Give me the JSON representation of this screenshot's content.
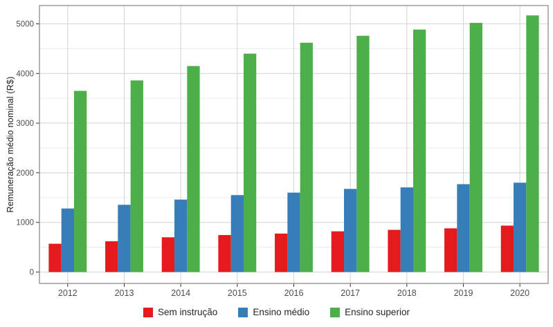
{
  "chart_data": {
    "type": "bar",
    "title": "",
    "xlabel": "",
    "ylabel": "Remuneração médio nominal (R$)",
    "categories": [
      "2012",
      "2013",
      "2014",
      "2015",
      "2016",
      "2017",
      "2018",
      "2019",
      "2020"
    ],
    "series": [
      {
        "name": "Sem instrução",
        "color": "#e41a1c",
        "values": [
          570,
          620,
          700,
          745,
          775,
          820,
          850,
          880,
          935
        ]
      },
      {
        "name": "Ensino médio",
        "color": "#377eb8",
        "values": [
          1280,
          1355,
          1460,
          1550,
          1600,
          1675,
          1705,
          1770,
          1800
        ]
      },
      {
        "name": "Ensino superior",
        "color": "#4daf4a",
        "values": [
          3650,
          3860,
          4150,
          4400,
          4620,
          4760,
          4885,
          5020,
          5170
        ]
      }
    ],
    "y_ticks": [
      0,
      1000,
      2000,
      3000,
      4000,
      5000
    ],
    "y_minor_ticks": [
      500,
      1500,
      2500,
      3500,
      4500
    ],
    "ylim": [
      -270,
      5370
    ],
    "grid": "major-and-minor",
    "legend_position": "bottom"
  },
  "colors": {
    "background": "#ffffff",
    "panel_border": "#8c8c8c",
    "grid_major": "#d6d6d6",
    "grid_minor": "#e9e9e9",
    "tick_mark": "#333333",
    "tick_text": "#4d4d4d",
    "axis_title": "#1a1a1a",
    "legend_text": "#262626"
  }
}
